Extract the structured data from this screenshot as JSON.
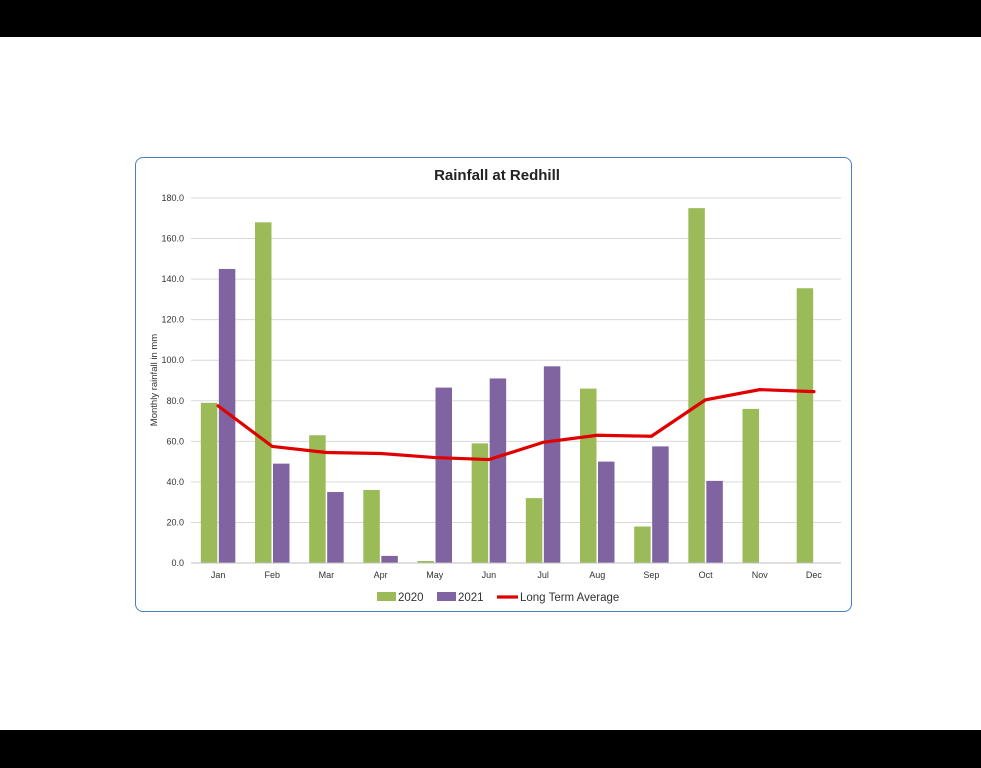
{
  "chart_data": {
    "type": "bar",
    "title": "Rainfall at Redhill",
    "xlabel": "",
    "ylabel": "Monthly rainfall in mm",
    "ylim": [
      0,
      180
    ],
    "yticks": [
      "0.0",
      "20.0",
      "40.0",
      "60.0",
      "80.0",
      "100.0",
      "120.0",
      "140.0",
      "160.0",
      "180.0"
    ],
    "categories": [
      "Jan",
      "Feb",
      "Mar",
      "Apr",
      "May",
      "Jun",
      "Jul",
      "Aug",
      "Sep",
      "Oct",
      "Nov",
      "Dec"
    ],
    "series": [
      {
        "name": "2020",
        "type": "bar",
        "color": "#9bbb59",
        "values": [
          79,
          168,
          63,
          36,
          1,
          59,
          32,
          86,
          18,
          175,
          76,
          135.5
        ]
      },
      {
        "name": "2021",
        "type": "bar",
        "color": "#8064a2",
        "values": [
          145,
          49,
          35,
          3.5,
          86.5,
          91,
          97,
          50,
          57.5,
          40.5,
          null,
          null
        ]
      },
      {
        "name": "Long Term Average",
        "type": "line",
        "color": "#e00000",
        "values": [
          77.5,
          57.5,
          54.5,
          54,
          52,
          51,
          59.5,
          63,
          62.5,
          80.5,
          85.5,
          84.5
        ]
      }
    ],
    "grid": true,
    "legend_position": "bottom"
  }
}
